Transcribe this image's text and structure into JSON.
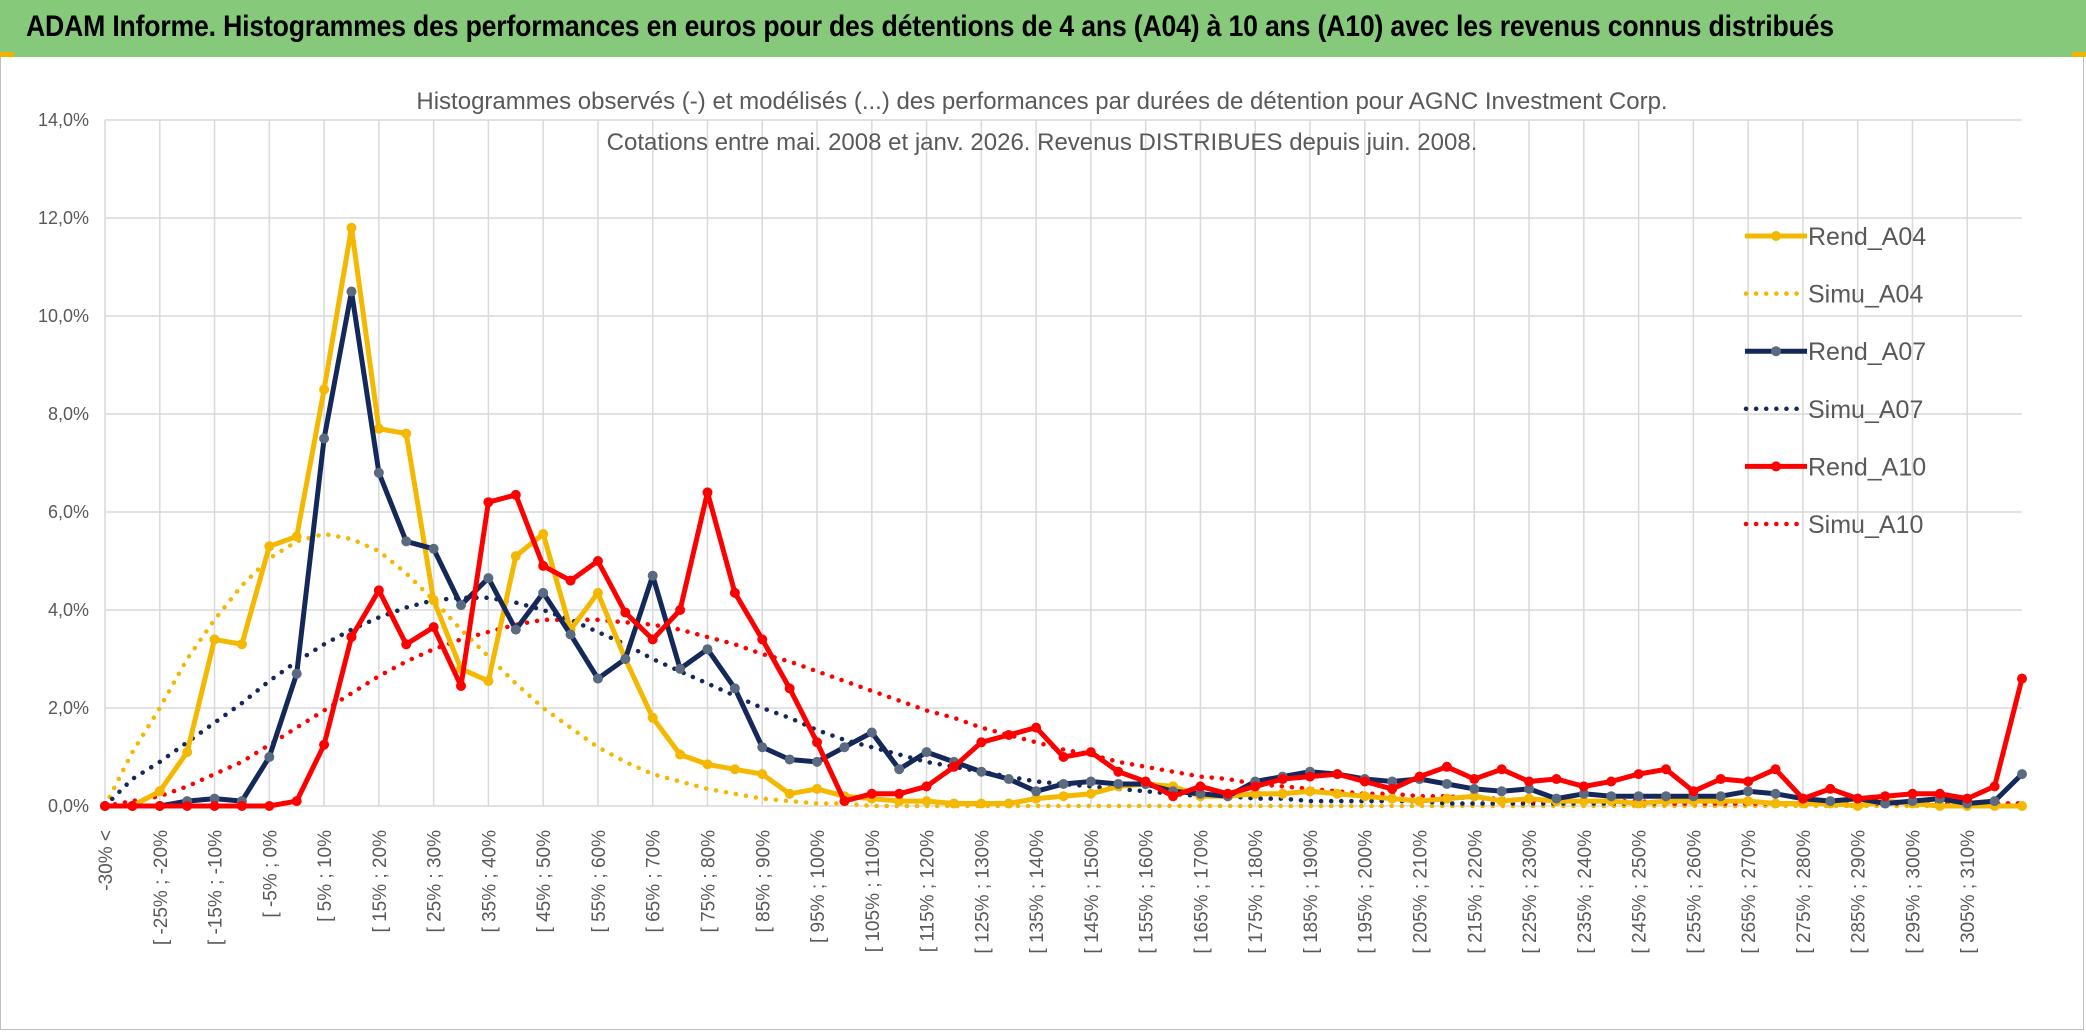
{
  "header": {
    "title": "ADAM Informe. Histogrammes des performances en euros pour des détentions de 4 ans (A04) à 10 ans (A10) avec les revenus connus distribués",
    "background": "#86c97a",
    "accent": "#f0b400"
  },
  "chart_data": {
    "type": "line",
    "title": "Histogrammes observés (-) et modélisés (...) des performances par durées de détention pour AGNC Investment Corp.",
    "subtitle": "Cotations entre mai. 2008 et janv. 2026. Revenus DISTRIBUES depuis juin. 2008.",
    "xlabel": "",
    "ylabel": "",
    "ylim": [
      0,
      14
    ],
    "yticks": [
      "0,0%",
      "2,0%",
      "4,0%",
      "6,0%",
      "8,0%",
      "10,0%",
      "12,0%",
      "14,0%"
    ],
    "y_unit": "%",
    "grid": true,
    "legend_position": "right",
    "x_tick_labels": [
      "-30% <",
      "[ -25% ; -20%",
      "[ -15% ; -10%",
      "[ -5% ; 0%",
      "[ 5% ; 10%",
      "[ 15% ; 20%",
      "[ 25% ; 30%",
      "[ 35% ; 40%",
      "[ 45% ; 50%",
      "[ 55% ; 60%",
      "[ 65% ; 70%",
      "[ 75% ; 80%",
      "[ 85% ; 90%",
      "[ 95% ; 100%",
      "[ 105% ; 110%",
      "[ 115% ; 120%",
      "[ 125% ; 130%",
      "[ 135% ; 140%",
      "[ 145% ; 150%",
      "[ 155% ; 160%",
      "[ 165% ; 170%",
      "[ 175% ; 180%",
      "[ 185% ; 190%",
      "[ 195% ; 200%",
      "[ 205% ; 210%",
      "[ 215% ; 220%",
      "[ 225% ; 230%",
      "[ 235% ; 240%",
      "[ 245% ; 250%",
      "[ 255% ; 260%",
      "[ 265% ; 270%",
      "[ 275% ; 280%",
      "[ 285% ; 290%",
      "[ 295% ; 300%",
      "[ 305% ; 310%"
    ],
    "series": [
      {
        "name": "Rend_A04",
        "style": "solid",
        "color": "#f5b800",
        "values": [
          0.0,
          0.0,
          0.3,
          1.1,
          3.4,
          3.3,
          5.3,
          5.5,
          8.5,
          11.8,
          7.7,
          7.6,
          4.2,
          2.8,
          2.55,
          5.1,
          5.55,
          3.6,
          4.35,
          3.0,
          1.8,
          1.05,
          0.85,
          0.75,
          0.65,
          0.25,
          0.35,
          0.2,
          0.15,
          0.1,
          0.1,
          0.05,
          0.05,
          0.05,
          0.15,
          0.2,
          0.25,
          0.4,
          0.45,
          0.4,
          0.2,
          0.2,
          0.25,
          0.25,
          0.3,
          0.25,
          0.2,
          0.15,
          0.1,
          0.15,
          0.2,
          0.1,
          0.15,
          0.1,
          0.1,
          0.1,
          0.05,
          0.1,
          0.1,
          0.1,
          0.1,
          0.05,
          0.05,
          0.05,
          0.0,
          0.1,
          0.05,
          0.0,
          0.0,
          0.0,
          0.0
        ]
      },
      {
        "name": "Simu_A04",
        "style": "dotted",
        "color": "#f5b800",
        "values": [
          0.0,
          1.1,
          2.0,
          3.0,
          3.8,
          4.5,
          5.05,
          5.4,
          5.55,
          5.45,
          5.2,
          4.75,
          4.2,
          3.6,
          3.05,
          2.5,
          2.0,
          1.6,
          1.2,
          0.9,
          0.65,
          0.5,
          0.35,
          0.25,
          0.15,
          0.1,
          0.05,
          0.05,
          0.0,
          0.0,
          0.0,
          0.0,
          0.0,
          0.0,
          0.0,
          0.0,
          0.0,
          0.0,
          0.0,
          0.0,
          0.0,
          0.0,
          0.0,
          0.0,
          0.0,
          0.0,
          0.0,
          0.0,
          0.0,
          0.0,
          0.0,
          0.0,
          0.0,
          0.0,
          0.0,
          0.0,
          0.0,
          0.0,
          0.0,
          0.0,
          0.0,
          0.0,
          0.0,
          0.0,
          0.0,
          0.0,
          0.0,
          0.0,
          0.0,
          0.0,
          0.0
        ]
      },
      {
        "name": "Rend_A07",
        "style": "solid",
        "color": "#14285a",
        "values": [
          0.0,
          0.0,
          0.0,
          0.1,
          0.15,
          0.1,
          1.0,
          2.7,
          7.5,
          10.5,
          6.8,
          5.4,
          5.25,
          4.1,
          4.65,
          3.6,
          4.35,
          3.5,
          2.6,
          3.0,
          4.7,
          2.8,
          3.2,
          2.4,
          1.2,
          0.95,
          0.9,
          1.2,
          1.5,
          0.75,
          1.1,
          0.9,
          0.7,
          0.55,
          0.3,
          0.45,
          0.5,
          0.45,
          0.45,
          0.3,
          0.25,
          0.2,
          0.5,
          0.6,
          0.7,
          0.65,
          0.55,
          0.5,
          0.55,
          0.45,
          0.35,
          0.3,
          0.35,
          0.15,
          0.25,
          0.2,
          0.2,
          0.2,
          0.2,
          0.2,
          0.3,
          0.25,
          0.15,
          0.1,
          0.15,
          0.05,
          0.1,
          0.15,
          0.05,
          0.1,
          0.65
        ]
      },
      {
        "name": "Simu_A07",
        "style": "dotted",
        "color": "#14285a",
        "values": [
          0.0,
          0.55,
          0.9,
          1.3,
          1.7,
          2.1,
          2.55,
          2.95,
          3.3,
          3.6,
          3.85,
          4.05,
          4.2,
          4.25,
          4.25,
          4.15,
          4.0,
          3.8,
          3.55,
          3.3,
          3.0,
          2.75,
          2.5,
          2.25,
          2.0,
          1.8,
          1.55,
          1.35,
          1.2,
          1.05,
          0.9,
          0.8,
          0.7,
          0.6,
          0.5,
          0.45,
          0.4,
          0.35,
          0.3,
          0.25,
          0.2,
          0.2,
          0.15,
          0.15,
          0.1,
          0.1,
          0.1,
          0.1,
          0.1,
          0.05,
          0.05,
          0.05,
          0.05,
          0.05,
          0.05,
          0.05,
          0.05,
          0.05,
          0.05,
          0.05,
          0.05,
          0.05,
          0.05,
          0.05,
          0.05,
          0.05,
          0.05,
          0.05,
          0.05,
          0.05,
          0.05
        ]
      },
      {
        "name": "Rend_A10",
        "style": "solid",
        "color": "#ff0000",
        "values": [
          0.0,
          0.0,
          0.0,
          0.0,
          0.0,
          0.0,
          0.0,
          0.1,
          1.25,
          3.45,
          4.4,
          3.3,
          3.65,
          2.45,
          6.2,
          6.35,
          4.9,
          4.6,
          5.0,
          3.95,
          3.4,
          4.0,
          6.4,
          4.35,
          3.4,
          2.4,
          1.3,
          0.1,
          0.25,
          0.25,
          0.4,
          0.8,
          1.3,
          1.45,
          1.6,
          1.0,
          1.1,
          0.7,
          0.5,
          0.2,
          0.4,
          0.25,
          0.4,
          0.55,
          0.6,
          0.65,
          0.5,
          0.35,
          0.6,
          0.8,
          0.55,
          0.75,
          0.5,
          0.55,
          0.4,
          0.5,
          0.65,
          0.75,
          0.3,
          0.55,
          0.5,
          0.75,
          0.15,
          0.35,
          0.15,
          0.2,
          0.25,
          0.25,
          0.15,
          0.4,
          2.6
        ]
      },
      {
        "name": "Simu_A10",
        "style": "dotted",
        "color": "#ff0000",
        "values": [
          0.0,
          0.1,
          0.2,
          0.4,
          0.65,
          0.9,
          1.25,
          1.6,
          1.95,
          2.3,
          2.65,
          2.95,
          3.2,
          3.4,
          3.55,
          3.7,
          3.8,
          3.8,
          3.8,
          3.75,
          3.7,
          3.6,
          3.45,
          3.3,
          3.1,
          2.95,
          2.75,
          2.55,
          2.35,
          2.15,
          1.95,
          1.8,
          1.6,
          1.45,
          1.3,
          1.15,
          1.05,
          0.9,
          0.8,
          0.7,
          0.6,
          0.55,
          0.45,
          0.4,
          0.35,
          0.3,
          0.25,
          0.25,
          0.2,
          0.2,
          0.15,
          0.15,
          0.1,
          0.1,
          0.1,
          0.1,
          0.1,
          0.05,
          0.05,
          0.05,
          0.05,
          0.05,
          0.05,
          0.05,
          0.05,
          0.05,
          0.05,
          0.05,
          0.05,
          0.05,
          0.05
        ]
      }
    ]
  }
}
